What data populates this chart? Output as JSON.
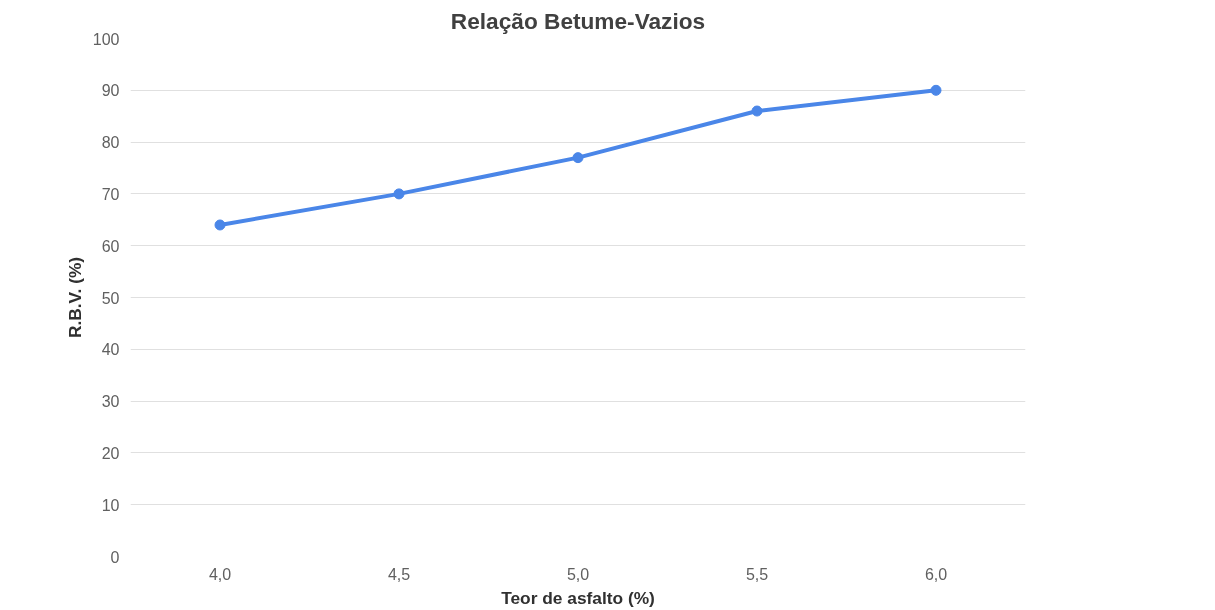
{
  "chart_data": {
    "type": "line",
    "title": "Relação Betume-Vazios",
    "xlabel": "Teor de asfalto (%)",
    "ylabel": "R.B.V. (%)",
    "categories": [
      "4,0",
      "4,5",
      "5,0",
      "5,5",
      "6,0"
    ],
    "series": [
      {
        "color": "#4a86e8",
        "values": [
          64,
          70,
          77,
          86,
          90
        ]
      }
    ],
    "ylim": [
      0,
      100
    ],
    "yticks": [
      0,
      10,
      20,
      30,
      40,
      50,
      60,
      70,
      80,
      90,
      100
    ],
    "grid": "y",
    "marker": "circle",
    "line_style": "solid"
  }
}
